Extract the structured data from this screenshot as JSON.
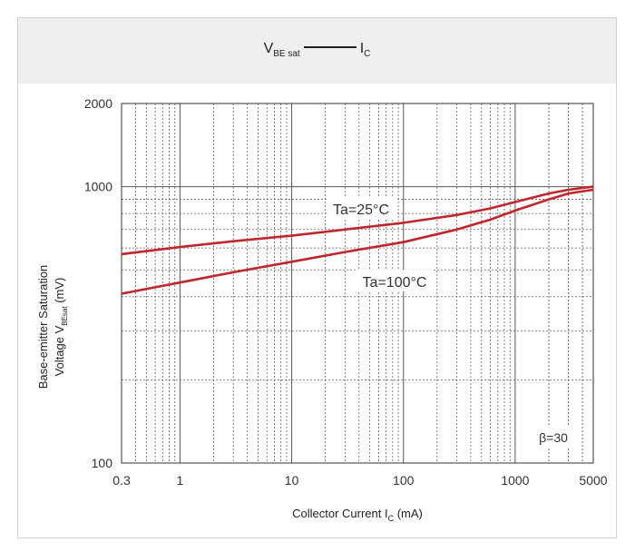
{
  "header": {
    "title_main": "V",
    "title_sub": "BE sat",
    "title_right": "I",
    "title_right_sub": "C"
  },
  "chart_data": {
    "type": "line",
    "xscale": "log",
    "yscale": "log",
    "xlim": [
      0.3,
      5000
    ],
    "ylim": [
      100,
      2000
    ],
    "xticks": [
      "0.3",
      "1",
      "10",
      "100",
      "1000",
      "5000"
    ],
    "yticks": [
      "100",
      "1000",
      "2000"
    ],
    "xlabel": "Collector Current  I",
    "xlabel_sub": "C",
    "xlabel_unit": " (mA)",
    "ylabel_line1": "Base-emitter Saturation",
    "ylabel_line2_main": "Voltage V",
    "ylabel_line2_sub": "BEsat",
    "ylabel_line2_unit": " (mV)",
    "grid": true,
    "annotation": "β=30",
    "line_color": "#c0272d",
    "series": [
      {
        "name": "Ta=25°C",
        "x": [
          0.3,
          1,
          3,
          10,
          30,
          100,
          300,
          600,
          1000,
          2000,
          3000,
          5000
        ],
        "y": [
          570,
          605,
          635,
          665,
          700,
          740,
          790,
          835,
          880,
          945,
          975,
          1000
        ]
      },
      {
        "name": "Ta=100°C",
        "x": [
          0.3,
          1,
          3,
          10,
          30,
          100,
          300,
          600,
          1000,
          2000,
          3000,
          5000
        ],
        "y": [
          410,
          450,
          490,
          535,
          580,
          630,
          700,
          760,
          820,
          900,
          945,
          975
        ]
      }
    ]
  }
}
